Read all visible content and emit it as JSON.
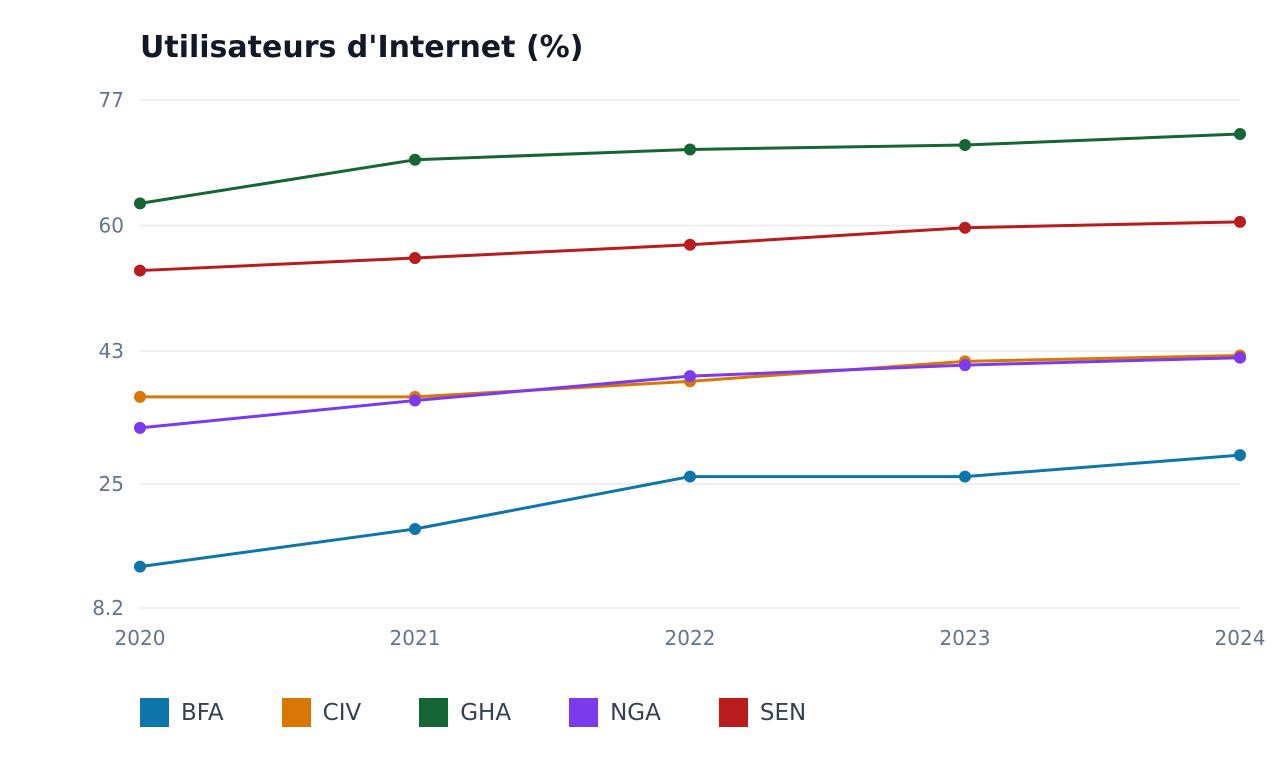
{
  "chart_data": {
    "type": "line",
    "title": "Utilisateurs d'Internet (%)",
    "xlabel": "",
    "ylabel": "",
    "x": [
      "2020",
      "2021",
      "2022",
      "2023",
      "2024"
    ],
    "yticks": [
      "77",
      "60",
      "43",
      "25",
      "8.2"
    ],
    "ylim": [
      8.2,
      77
    ],
    "grid": true,
    "legend_position": "bottom-left",
    "series": [
      {
        "name": "BFA",
        "color": "#0e76a8",
        "values": [
          13.8,
          18.9,
          26.0,
          26.0,
          28.9
        ]
      },
      {
        "name": "CIV",
        "color": "#d97706",
        "values": [
          36.8,
          36.8,
          38.9,
          41.6,
          42.4
        ]
      },
      {
        "name": "GHA",
        "color": "#166534",
        "values": [
          63.0,
          68.9,
          70.3,
          70.9,
          72.4
        ]
      },
      {
        "name": "NGA",
        "color": "#7c3aed",
        "values": [
          32.6,
          36.3,
          39.6,
          41.1,
          42.1
        ]
      },
      {
        "name": "SEN",
        "color": "#b91c1c",
        "values": [
          53.9,
          55.6,
          57.4,
          59.7,
          60.5
        ]
      }
    ]
  }
}
